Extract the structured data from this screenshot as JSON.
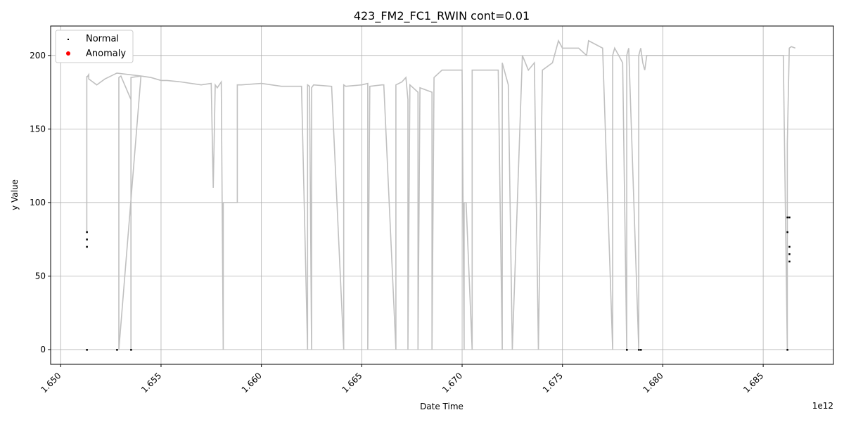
{
  "chart_data": {
    "type": "line",
    "title": "423_FM2_FC1_RWIN cont=0.01",
    "xlabel": "Date Time",
    "ylabel": "y Value",
    "x_offset_label": "1e12",
    "xlim": [
      1.6495,
      1.6885
    ],
    "ylim": [
      -10,
      220
    ],
    "x_ticks": [
      1.65,
      1.655,
      1.66,
      1.665,
      1.67,
      1.675,
      1.68,
      1.685
    ],
    "x_tick_labels": [
      "1.650",
      "1.655",
      "1.660",
      "1.665",
      "1.670",
      "1.675",
      "1.680",
      "1.685"
    ],
    "y_ticks": [
      0,
      50,
      100,
      150,
      200
    ],
    "y_tick_labels": [
      "0",
      "50",
      "100",
      "150",
      "200"
    ],
    "grid": true,
    "legend_placement": "top-left",
    "legend": [
      {
        "label": "Normal",
        "color": "#000000"
      },
      {
        "label": "Anomaly",
        "color": "#ff0000"
      }
    ],
    "line_color": "#c0c0c0",
    "series": [
      {
        "kind": "line",
        "x": [
          1.6513,
          1.6513,
          1.6513,
          1.6514,
          1.6514,
          1.6515,
          1.6516,
          1.6518,
          1.652,
          1.6522,
          1.6528,
          1.654,
          1.6529,
          1.6529,
          1.653,
          1.6535,
          1.6535,
          1.6535,
          1.654,
          1.6545,
          1.655,
          1.6553,
          1.656,
          1.657,
          1.6575,
          1.6576,
          1.6577,
          1.6578,
          1.658,
          1.6581,
          1.6581,
          1.6588,
          1.6588,
          1.659,
          1.66,
          1.661,
          1.662,
          1.6623,
          1.6623,
          1.6624,
          1.6625,
          1.6625,
          1.6626,
          1.6635,
          1.6641,
          1.6641,
          1.6642,
          1.665,
          1.6653,
          1.6653,
          1.6654,
          1.666,
          1.6661,
          1.6667,
          1.6667,
          1.667,
          1.6672,
          1.6673,
          1.6673,
          1.6674,
          1.6678,
          1.6678,
          1.6679,
          1.6685,
          1.6685,
          1.6686,
          1.669,
          1.67,
          1.6701,
          1.6701,
          1.6702,
          1.6705,
          1.6705,
          1.6707,
          1.6718,
          1.672,
          1.672,
          1.6723,
          1.6725,
          1.673,
          1.6733,
          1.6736,
          1.6738,
          1.674,
          1.6745,
          1.6748,
          1.675,
          1.6758,
          1.6762,
          1.6763,
          1.677,
          1.6775,
          1.6775,
          1.6776,
          1.6778,
          1.678,
          1.6782,
          1.6782,
          1.6783,
          1.6788,
          1.6788,
          1.6789,
          1.679,
          1.6791,
          1.6792,
          1.6792,
          1.68,
          1.682,
          1.684,
          1.686,
          1.6862,
          1.6862,
          1.6863,
          1.6864,
          1.6866
        ],
        "y": [
          186,
          80,
          185,
          187,
          184,
          183,
          182,
          180,
          182,
          184,
          188,
          186,
          0,
          185,
          186,
          170,
          0,
          185,
          186,
          185,
          183,
          183,
          182,
          180,
          181,
          110,
          180,
          178,
          182,
          0,
          100,
          100,
          180,
          180,
          181,
          179,
          179,
          0,
          180,
          179,
          0,
          178,
          180,
          179,
          0,
          180,
          179,
          180,
          181,
          0,
          179,
          180,
          180,
          0,
          180,
          182,
          185,
          170,
          0,
          180,
          175,
          0,
          178,
          175,
          0,
          185,
          190,
          190,
          0,
          100,
          100,
          0,
          190,
          190,
          190,
          0,
          195,
          180,
          0,
          200,
          190,
          195,
          0,
          190,
          195,
          210,
          205,
          205,
          200,
          210,
          205,
          0,
          200,
          205,
          200,
          195,
          0,
          200,
          205,
          0,
          200,
          205,
          195,
          190,
          200,
          200,
          200,
          200,
          200,
          200,
          0,
          140,
          205,
          206,
          205
        ]
      },
      {
        "kind": "scatter",
        "name": "Normal",
        "x": [
          1.6513,
          1.6513,
          1.6513,
          1.6513,
          1.6528,
          1.6535,
          1.6782,
          1.6788,
          1.6789,
          1.6862,
          1.6862,
          1.6862,
          1.6863,
          1.6863,
          1.6863,
          1.6863
        ],
        "y": [
          80,
          75,
          70,
          0,
          0,
          0,
          0,
          0,
          0,
          0,
          90,
          80,
          70,
          65,
          60,
          90
        ]
      }
    ]
  }
}
